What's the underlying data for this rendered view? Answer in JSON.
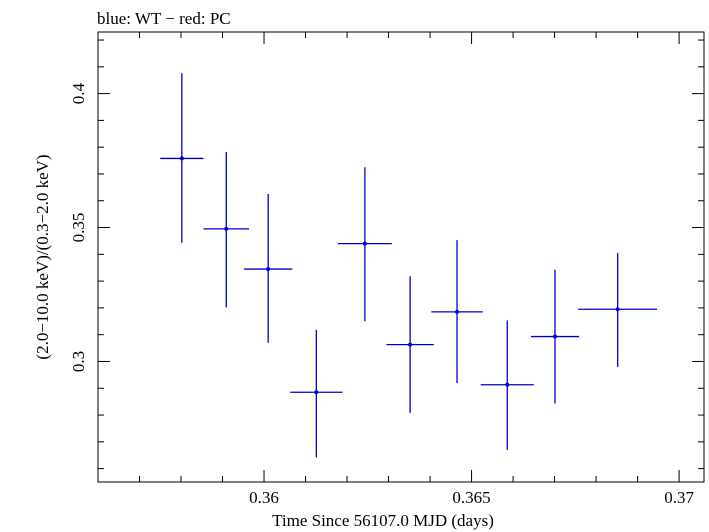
{
  "chart_data": {
    "type": "scatter",
    "title": "blue: WT − red: PC",
    "xlabel": "Time Since 56107.0 MJD (days)",
    "ylabel": "(2.0−10.0 keV)/(0.3−2.0 keV)",
    "xlim": [
      0.356,
      0.3706
    ],
    "ylim": [
      0.255,
      0.423
    ],
    "x_ticks": [
      {
        "value": 0.36,
        "label": "0.36"
      },
      {
        "value": 0.365,
        "label": "0.365"
      },
      {
        "value": 0.37,
        "label": "0.37"
      }
    ],
    "y_ticks": [
      {
        "value": 0.3,
        "label": "0.3"
      },
      {
        "value": 0.35,
        "label": "0.35"
      },
      {
        "value": 0.4,
        "label": "0.4"
      }
    ],
    "x_minor_step": 0.001,
    "y_minor_step": 0.01,
    "grid": false,
    "series": [
      {
        "color": "#0000cc",
        "points": [
          {
            "x": 0.35802,
            "xerr": 0.00052,
            "y": 0.3758,
            "yerr_hi": 0.0318,
            "yerr_lo": 0.0315
          },
          {
            "x": 0.35909,
            "xerr": 0.00055,
            "y": 0.3495,
            "yerr_hi": 0.0287,
            "yerr_lo": 0.0293
          },
          {
            "x": 0.3601,
            "xerr": 0.00058,
            "y": 0.3345,
            "yerr_hi": 0.028,
            "yerr_lo": 0.0275
          },
          {
            "x": 0.36126,
            "xerr": 0.00063,
            "y": 0.2885,
            "yerr_hi": 0.0233,
            "yerr_lo": 0.0243
          },
          {
            "x": 0.36243,
            "xerr": 0.00065,
            "y": 0.344,
            "yerr_hi": 0.0285,
            "yerr_lo": 0.029
          },
          {
            "x": 0.36352,
            "xerr": 0.00057,
            "y": 0.3063,
            "yerr_hi": 0.0255,
            "yerr_lo": 0.0255
          },
          {
            "x": 0.36465,
            "xerr": 0.00062,
            "y": 0.3185,
            "yerr_hi": 0.0268,
            "yerr_lo": 0.0265
          },
          {
            "x": 0.36586,
            "xerr": 0.00064,
            "y": 0.2913,
            "yerr_hi": 0.024,
            "yerr_lo": 0.0243
          },
          {
            "x": 0.36701,
            "xerr": 0.00058,
            "y": 0.3093,
            "yerr_hi": 0.025,
            "yerr_lo": 0.025
          },
          {
            "x": 0.36852,
            "xerr": 0.00095,
            "y": 0.3195,
            "yerr_hi": 0.021,
            "yerr_lo": 0.0215
          }
        ]
      }
    ]
  }
}
